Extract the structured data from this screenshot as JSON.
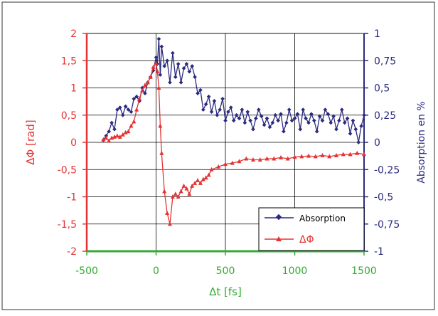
{
  "chart_data": {
    "type": "line",
    "x_axis": {
      "label": "Δt [fs]",
      "range": [
        -500,
        1500
      ],
      "ticks": [
        "-500",
        "0",
        "500",
        "1000",
        "1500"
      ],
      "color": "#33aa33"
    },
    "y_left": {
      "label": "ΔΦ [rad]",
      "range": [
        -2,
        2
      ],
      "ticks": [
        "2",
        "1,5",
        "1",
        "0,5",
        "0",
        "-0,5",
        "-1",
        "-1,5",
        "-2"
      ],
      "color": "#e53333"
    },
    "y_right": {
      "label": "Absorption en %",
      "range": [
        -1,
        1
      ],
      "ticks": [
        "1",
        "0,75",
        "0,5",
        "0,25",
        "0",
        "-0,25",
        "-0,5",
        "-0,75",
        "-1"
      ],
      "color": "#2a2a80"
    },
    "grid": true,
    "legend": {
      "placement": "bottom-right",
      "entries": [
        "Absorption",
        "ΔΦ"
      ]
    },
    "series": [
      {
        "name": "Absorption",
        "axis": "right",
        "color": "#2a2a80",
        "marker": "diamond",
        "x": [
          -380,
          -360,
          -340,
          -320,
          -300,
          -280,
          -260,
          -240,
          -220,
          -200,
          -180,
          -160,
          -140,
          -120,
          -100,
          -80,
          -60,
          -40,
          -20,
          0,
          10,
          20,
          30,
          40,
          60,
          80,
          100,
          120,
          140,
          160,
          180,
          200,
          220,
          240,
          260,
          280,
          300,
          320,
          340,
          360,
          380,
          400,
          420,
          440,
          460,
          480,
          500,
          520,
          540,
          560,
          580,
          600,
          620,
          640,
          660,
          680,
          700,
          720,
          740,
          760,
          780,
          800,
          820,
          840,
          860,
          880,
          900,
          920,
          940,
          960,
          980,
          1000,
          1020,
          1040,
          1060,
          1080,
          1100,
          1120,
          1140,
          1160,
          1180,
          1200,
          1220,
          1240,
          1260,
          1280,
          1300,
          1320,
          1340,
          1360,
          1380,
          1400,
          1420,
          1440,
          1460,
          1480,
          1500
        ],
        "y": [
          0.02,
          0.06,
          0.1,
          0.18,
          0.12,
          0.3,
          0.32,
          0.25,
          0.33,
          0.3,
          0.28,
          0.4,
          0.42,
          0.38,
          0.5,
          0.45,
          0.55,
          0.6,
          0.66,
          0.78,
          0.72,
          0.95,
          0.62,
          0.88,
          0.7,
          0.75,
          0.55,
          0.82,
          0.6,
          0.72,
          0.55,
          0.68,
          0.72,
          0.65,
          0.7,
          0.6,
          0.45,
          0.48,
          0.3,
          0.35,
          0.42,
          0.28,
          0.38,
          0.25,
          0.3,
          0.4,
          0.2,
          0.28,
          0.32,
          0.2,
          0.25,
          0.22,
          0.3,
          0.18,
          0.28,
          0.2,
          0.12,
          0.22,
          0.3,
          0.24,
          0.16,
          0.22,
          0.14,
          0.18,
          0.25,
          0.2,
          0.26,
          0.1,
          0.18,
          0.3,
          0.2,
          0.22,
          0.26,
          0.12,
          0.3,
          0.22,
          0.18,
          0.26,
          0.2,
          0.1,
          0.24,
          0.2,
          0.3,
          0.26,
          0.18,
          0.24,
          0.12,
          0.2,
          0.3,
          0.18,
          0.22,
          0.08,
          0.2,
          0.12,
          0.0,
          0.15,
          0.25
        ]
      },
      {
        "name": "ΔΦ",
        "axis": "left",
        "color": "#e53333",
        "marker": "triangle",
        "x": [
          -380,
          -360,
          -340,
          -320,
          -300,
          -280,
          -260,
          -240,
          -220,
          -200,
          -180,
          -160,
          -140,
          -120,
          -100,
          -80,
          -60,
          -40,
          -20,
          0,
          10,
          20,
          30,
          40,
          60,
          80,
          100,
          120,
          140,
          160,
          180,
          200,
          220,
          240,
          260,
          280,
          300,
          320,
          340,
          360,
          380,
          400,
          450,
          500,
          550,
          600,
          650,
          700,
          750,
          800,
          850,
          900,
          950,
          1000,
          1050,
          1100,
          1150,
          1200,
          1250,
          1300,
          1350,
          1400,
          1450,
          1500
        ],
        "y": [
          0.05,
          0.08,
          0.03,
          0.08,
          0.1,
          0.12,
          0.1,
          0.14,
          0.18,
          0.2,
          0.3,
          0.38,
          0.6,
          0.8,
          0.95,
          1.05,
          1.1,
          1.2,
          1.38,
          1.45,
          1.3,
          1.0,
          0.3,
          -0.2,
          -0.9,
          -1.3,
          -1.5,
          -1.0,
          -0.95,
          -1.0,
          -0.9,
          -0.8,
          -0.85,
          -0.95,
          -0.8,
          -0.75,
          -0.7,
          -0.75,
          -0.68,
          -0.65,
          -0.6,
          -0.5,
          -0.45,
          -0.4,
          -0.38,
          -0.35,
          -0.3,
          -0.32,
          -0.32,
          -0.3,
          -0.3,
          -0.28,
          -0.3,
          -0.27,
          -0.26,
          -0.25,
          -0.26,
          -0.24,
          -0.26,
          -0.24,
          -0.22,
          -0.22,
          -0.2,
          -0.22
        ]
      }
    ]
  }
}
